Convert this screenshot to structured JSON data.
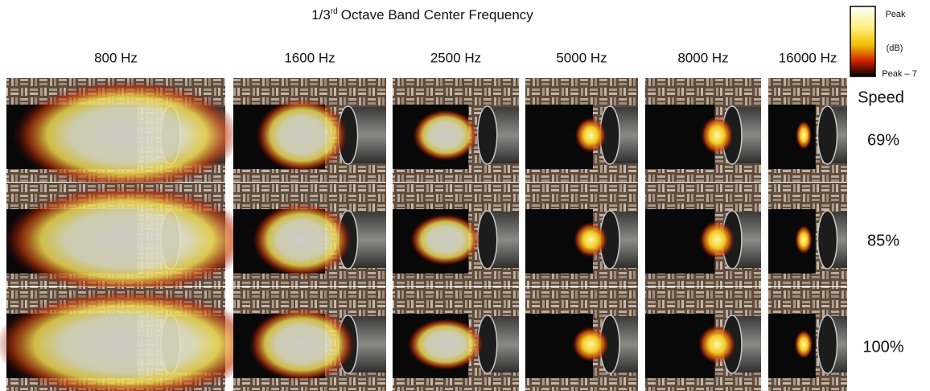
{
  "figure": {
    "title": {
      "prefix": "1/3",
      "superscript": "rd",
      "suffix": "Octave Band Center Frequency"
    },
    "columns": [
      "800 Hz",
      "1600 Hz",
      "2500 Hz",
      "5000 Hz",
      "8000 Hz",
      "16000 Hz"
    ],
    "row_header": "Speed",
    "rows": [
      "69%",
      "85%",
      "100%"
    ],
    "colorbar": {
      "top": "Peak",
      "unit": "(dB)",
      "bottom": "Peak – 7"
    }
  }
}
